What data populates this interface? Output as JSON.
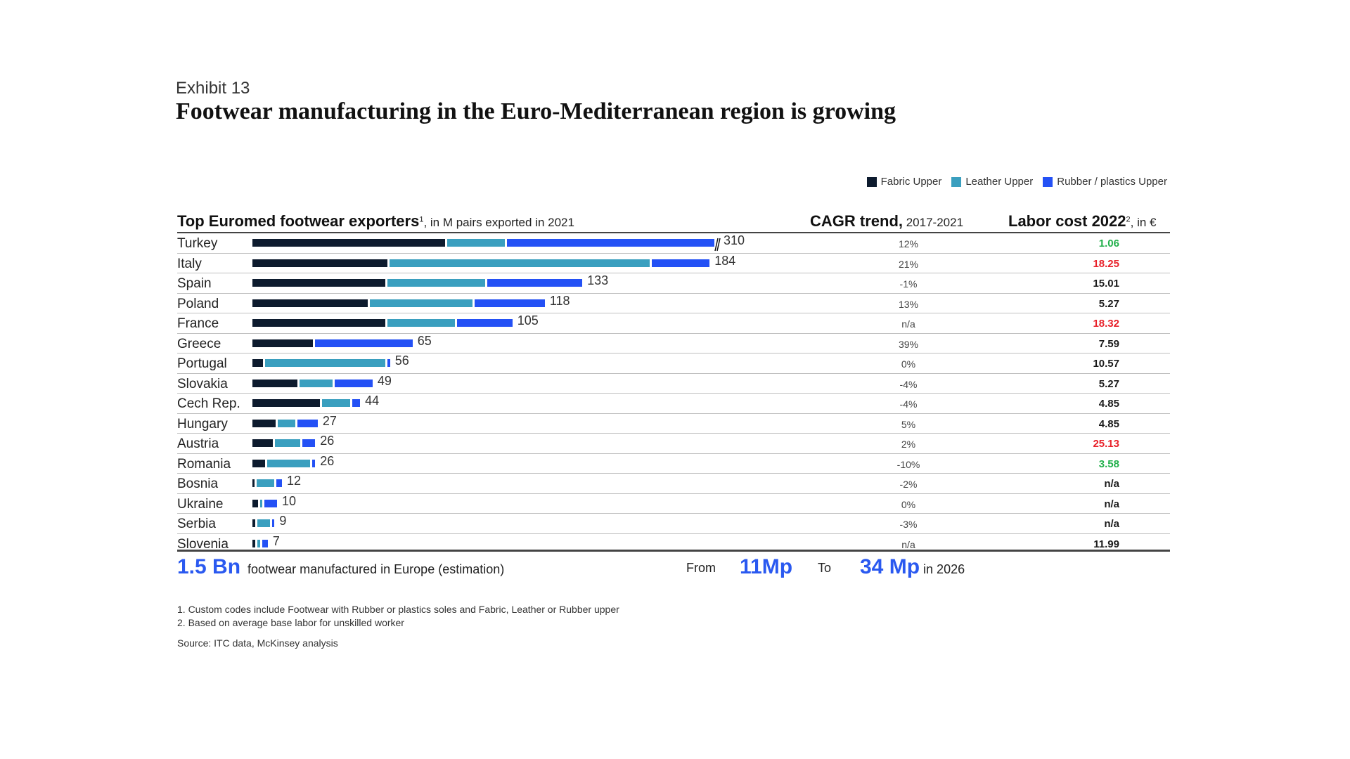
{
  "header": {
    "exhibit": "Exhibit 13",
    "title": "Footwear manufacturing in the Euro-Mediterranean region is growing"
  },
  "legend": [
    {
      "label": "Fabric Upper",
      "color": "#0d1b2e"
    },
    {
      "label": "Leather Upper",
      "color": "#3a9fbf"
    },
    {
      "label": "Rubber / plastics Upper",
      "color": "#2451f5"
    }
  ],
  "columns": {
    "left_title": "Top Euromed footwear exporters",
    "left_sup": "1",
    "left_sub": ", in M pairs exported in 2021",
    "cagr_title": "CAGR trend,",
    "cagr_sub": " 2017-2021",
    "labor_title": "Labor cost 2022",
    "labor_sup": "2",
    "labor_sub": ", in €"
  },
  "chart_data": {
    "type": "bar",
    "stacked": true,
    "orientation": "horizontal",
    "unit": "M pairs exported in 2021",
    "axis_break_category": "Turkey",
    "categories": [
      "Turkey",
      "Italy",
      "Spain",
      "Poland",
      "France",
      "Greece",
      "Portugal",
      "Slovakia",
      "Cech Rep.",
      "Hungary",
      "Austria",
      "Romania",
      "Bosnia",
      "Ukraine",
      "Serbia",
      "Slovenia"
    ],
    "totals": [
      310,
      184,
      133,
      118,
      105,
      65,
      56,
      49,
      44,
      27,
      26,
      26,
      12,
      10,
      9,
      7
    ],
    "series": [
      {
        "name": "Fabric Upper",
        "values": [
          130,
          55,
          54,
          47,
          54,
          25,
          5,
          19,
          28,
          10,
          9,
          6,
          1,
          3,
          2,
          2
        ]
      },
      {
        "name": "Leather Upper",
        "values": [
          40,
          105,
          40,
          42,
          28,
          0,
          49,
          14,
          12,
          8,
          11,
          18,
          8,
          1,
          6,
          2
        ]
      },
      {
        "name": "Rubber / plastics Upper",
        "values": [
          140,
          24,
          39,
          29,
          23,
          40,
          2,
          16,
          4,
          9,
          6,
          2,
          3,
          6,
          1,
          3
        ]
      }
    ],
    "cagr": [
      "12%",
      "21%",
      "-1%",
      "13%",
      "n/a",
      "39%",
      "0%",
      "-4%",
      "-4%",
      "5%",
      "2%",
      "-10%",
      "-2%",
      "0%",
      "-3%",
      "n/a"
    ],
    "labor_cost": [
      "1.06",
      "18.25",
      "15.01",
      "5.27",
      "18.32",
      "7.59",
      "10.57",
      "5.27",
      "4.85",
      "4.85",
      "25.13",
      "3.58",
      "n/a",
      "n/a",
      "n/a",
      "11.99"
    ],
    "labor_colors": [
      "#22b04b",
      "#e8212a",
      "#1a1a1a",
      "#1a1a1a",
      "#e8212a",
      "#1a1a1a",
      "#1a1a1a",
      "#1a1a1a",
      "#1a1a1a",
      "#1a1a1a",
      "#e8212a",
      "#22b04b",
      "#1a1a1a",
      "#1a1a1a",
      "#1a1a1a",
      "#1a1a1a"
    ]
  },
  "summary": {
    "big_left": "1.5 Bn",
    "left_text": "footwear manufactured in Europe (estimation)",
    "from_label": "From",
    "from_value": "11Mp",
    "to_label": "To",
    "to_value": "34 Mp",
    "to_suffix": "in 2026"
  },
  "footnotes": [
    "1.   Custom codes include Footwear with Rubber or plastics soles and Fabric, Leather or Rubber upper",
    "2.   Based on average base labor for unskilled worker"
  ],
  "source": "Source: ITC data, McKinsey analysis"
}
